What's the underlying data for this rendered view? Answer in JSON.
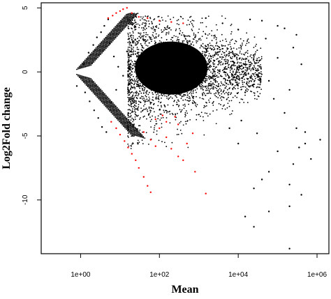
{
  "chart_data": {
    "type": "scatter",
    "title": "",
    "xlabel": "Mean",
    "ylabel": "Log2Fold change",
    "x_scale": "log10",
    "xlim": [
      0.1,
      2000000
    ],
    "ylim": [
      -14.2,
      5.4
    ],
    "x_ticks": [
      {
        "value": 1,
        "label": "1e+00"
      },
      {
        "value": 100,
        "label": "1e+02"
      },
      {
        "value": 10000,
        "label": "1e+04"
      },
      {
        "value": 1000000,
        "label": "1e+06"
      }
    ],
    "y_ticks": [
      {
        "value": 5,
        "label": "5"
      },
      {
        "value": 0,
        "label": "0"
      },
      {
        "value": -5,
        "label": "-5"
      },
      {
        "value": -10,
        "label": "-10"
      }
    ],
    "grid": false,
    "legend": "none",
    "series": [
      {
        "color": "#000000",
        "points": [
          [
            0.8,
            -1.1
          ],
          [
            1.2,
            0.6
          ],
          [
            1.3,
            -1.6
          ],
          [
            1.6,
            1.5
          ],
          [
            1.7,
            -2.3
          ],
          [
            2.1,
            2.1
          ],
          [
            2.2,
            -3.0
          ],
          [
            2.6,
            2.7
          ],
          [
            2.8,
            -3.6
          ],
          [
            3.3,
            3.1
          ],
          [
            3.5,
            -4.3
          ],
          [
            4,
            3.6
          ],
          [
            4.5,
            -4.7
          ],
          [
            5,
            4.1
          ],
          [
            5.5,
            2.2
          ],
          [
            6,
            -2.4
          ],
          [
            7,
            1.2
          ],
          [
            8,
            -1.4
          ],
          [
            9,
            0.4
          ],
          [
            12,
            -0.3
          ],
          [
            15,
            1.6
          ],
          [
            20,
            -1.2
          ],
          [
            30,
            0.8
          ],
          [
            50,
            -0.5
          ],
          [
            80,
            0.2
          ],
          [
            150,
            -0.8
          ],
          [
            300,
            0.5
          ],
          [
            600,
            -0.2
          ],
          [
            1000,
            1.0
          ],
          [
            2000,
            -0.4
          ],
          [
            3000,
            1.8
          ],
          [
            5000,
            -0.9
          ],
          [
            8000,
            0.7
          ],
          [
            15000,
            -1.6
          ],
          [
            30000,
            0.9
          ],
          [
            60000,
            -0.7
          ],
          [
            100000,
            1.1
          ],
          [
            200000,
            -1.4
          ],
          [
            400000,
            0.6
          ],
          [
            50000,
            2.6
          ],
          [
            80000,
            -2.1
          ],
          [
            150000,
            -3.2
          ],
          [
            300000,
            -4.4
          ],
          [
            500000,
            -5.6
          ],
          [
            700000,
            -6.8
          ],
          [
            1200000,
            -5.3
          ],
          [
            250000,
            -7.2
          ],
          [
            350000,
            -5.9
          ],
          [
            60000,
            -7.8
          ],
          [
            100000,
            -6.2
          ],
          [
            200000,
            -8.8
          ],
          [
            400000,
            -9.6
          ],
          [
            40000,
            -8.4
          ],
          [
            25000,
            -9.1
          ],
          [
            30000,
            -4.8
          ],
          [
            10000,
            -5.6
          ],
          [
            12000,
            -3.8
          ],
          [
            6000,
            -4.4
          ],
          [
            200000,
            -10.5
          ],
          [
            60000,
            -10.9
          ],
          [
            25000,
            -12.1
          ],
          [
            15000,
            -11.3
          ],
          [
            200000,
            -13.8
          ],
          [
            500000,
            -4.7
          ],
          [
            150000,
            3.4
          ],
          [
            250000,
            1.9
          ],
          [
            300000,
            2.9
          ],
          [
            100000,
            3.6
          ],
          [
            40000,
            4.0
          ],
          [
            20000,
            4.1
          ],
          [
            10000,
            3.3
          ],
          [
            4000,
            3.8
          ],
          [
            1500,
            4.2
          ],
          [
            800,
            2.7
          ]
        ]
      },
      {
        "color": "#ff0000",
        "points": [
          [
            5,
            4.2
          ],
          [
            6.5,
            4.4
          ],
          [
            8,
            4.6
          ],
          [
            10,
            4.75
          ],
          [
            12,
            4.9
          ],
          [
            15,
            5.0
          ],
          [
            20,
            4.6
          ],
          [
            30,
            4.3
          ],
          [
            50,
            4.2
          ],
          [
            100,
            4.0
          ],
          [
            200,
            3.9
          ],
          [
            400,
            3.8
          ],
          [
            6,
            -3.9
          ],
          [
            8,
            -4.4
          ],
          [
            10,
            -4.9
          ],
          [
            13,
            -5.4
          ],
          [
            16,
            -5.9
          ],
          [
            20,
            -6.4
          ],
          [
            25,
            -6.9
          ],
          [
            30,
            -7.5
          ],
          [
            40,
            -8.2
          ],
          [
            50,
            -8.9
          ],
          [
            60,
            -9.4
          ],
          [
            40,
            -4.7
          ],
          [
            60,
            -5.3
          ],
          [
            80,
            -5.8
          ],
          [
            100,
            -4.4
          ],
          [
            150,
            -5.1
          ],
          [
            200,
            -6.0
          ],
          [
            300,
            -6.6
          ],
          [
            400,
            -6.9
          ],
          [
            500,
            -5.6
          ],
          [
            700,
            -4.8
          ],
          [
            300,
            -4.1
          ],
          [
            150,
            -3.9
          ],
          [
            80,
            -3.7
          ],
          [
            1500,
            -9.5
          ],
          [
            800,
            -7.8
          ],
          [
            250,
            -3.5
          ],
          [
            120,
            -3.4
          ]
        ]
      }
    ]
  }
}
